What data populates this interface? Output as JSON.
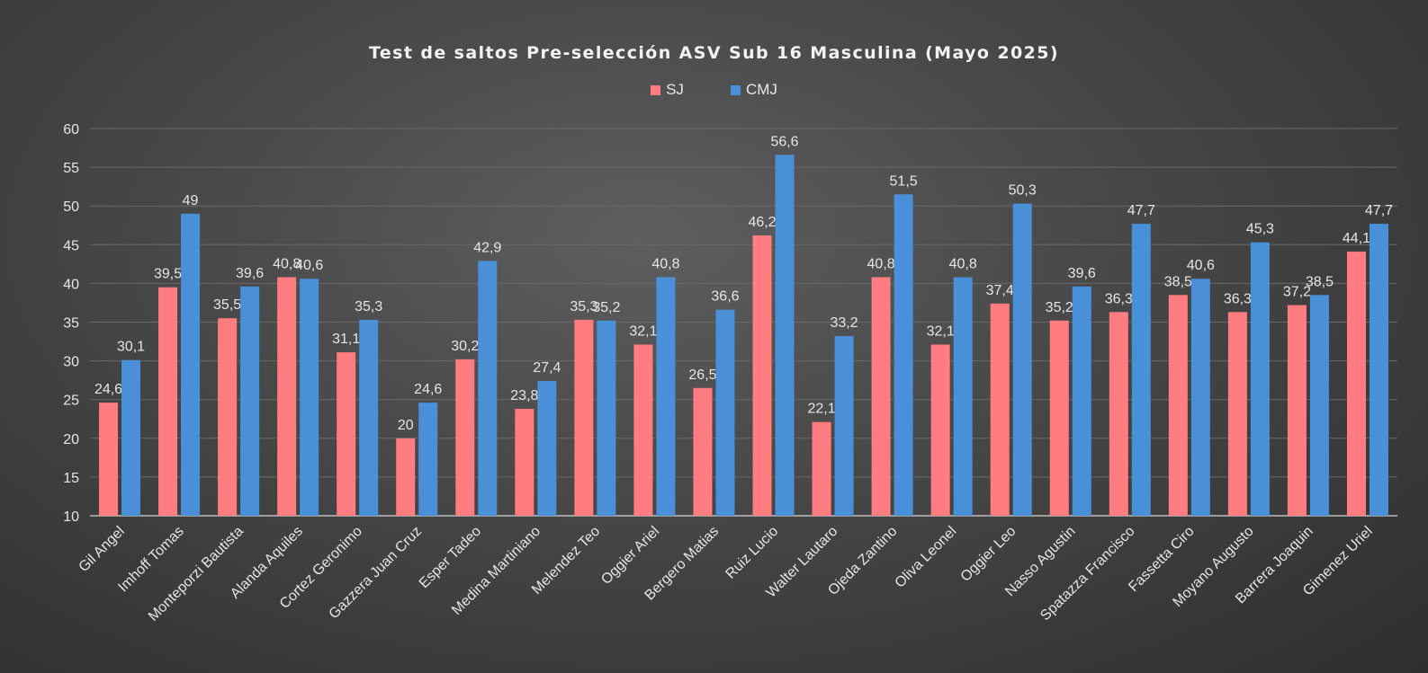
{
  "chart_data": {
    "type": "bar",
    "title": "Test de saltos Pre-selección ASV Sub 16 Masculina (Mayo 2025)",
    "categories": [
      "Gil Angel",
      "Imhoff Tomas",
      "Monteporzi Bautista",
      "Alanda Aquiles",
      "Cortez Geronimo",
      "Gazzera Juan Cruz",
      "Esper Tadeo",
      "Medina Martiniano",
      "Melendez Teo",
      "Oggier Ariel",
      "Bergero Matias",
      "Ruiz Lucio",
      "Walter Lautaro",
      "Ojeda Zantino",
      "Oliva Leonel",
      "Oggier Leo",
      "Nasso Agustin",
      "Spatazza Francisco",
      "Fassetta Ciro",
      "Moyano Augusto",
      "Barrera Joaquin",
      "Gimenez Uriel"
    ],
    "series": [
      {
        "name": "SJ",
        "color": "#ff7c80",
        "values": [
          24.6,
          39.5,
          35.5,
          40.8,
          31.1,
          20,
          30.2,
          23.8,
          35.3,
          32.1,
          26.5,
          46.2,
          22.1,
          40.8,
          32.1,
          37.4,
          35.2,
          36.3,
          38.5,
          36.3,
          37.2,
          44.1
        ],
        "labels": [
          "24,6",
          "39,5",
          "35,5",
          "40,8",
          "31,1",
          "20",
          "30,2",
          "23,8",
          "35,3",
          "32,1",
          "26,5",
          "46,2",
          "22,1",
          "40,8",
          "32,1",
          "37,4",
          "35,2",
          "36,3",
          "38,5",
          "36,3",
          "37,2",
          "44,1"
        ]
      },
      {
        "name": "CMJ",
        "color": "#4a90d9",
        "values": [
          30.1,
          49,
          39.6,
          40.6,
          35.3,
          24.6,
          42.9,
          27.4,
          35.2,
          40.8,
          36.6,
          56.6,
          33.2,
          51.5,
          40.8,
          50.3,
          39.6,
          47.7,
          40.6,
          45.3,
          38.5,
          47.7
        ],
        "labels": [
          "30,1",
          "49",
          "39,6",
          "40,6",
          "35,3",
          "24,6",
          "42,9",
          "27,4",
          "35,2",
          "40,8",
          "36,6",
          "56,6",
          "33,2",
          "51,5",
          "40,8",
          "50,3",
          "39,6",
          "47,7",
          "40,6",
          "45,3",
          "38,5",
          "47,7"
        ]
      }
    ],
    "ylim": [
      10,
      60
    ],
    "yticks": [
      10,
      15,
      20,
      25,
      30,
      35,
      40,
      45,
      50,
      55,
      60
    ],
    "xlabel": "",
    "ylabel": "",
    "legend_position": "top-center",
    "grid": true,
    "gridline_color": "#6a6a6a",
    "background_color": "#444444"
  }
}
